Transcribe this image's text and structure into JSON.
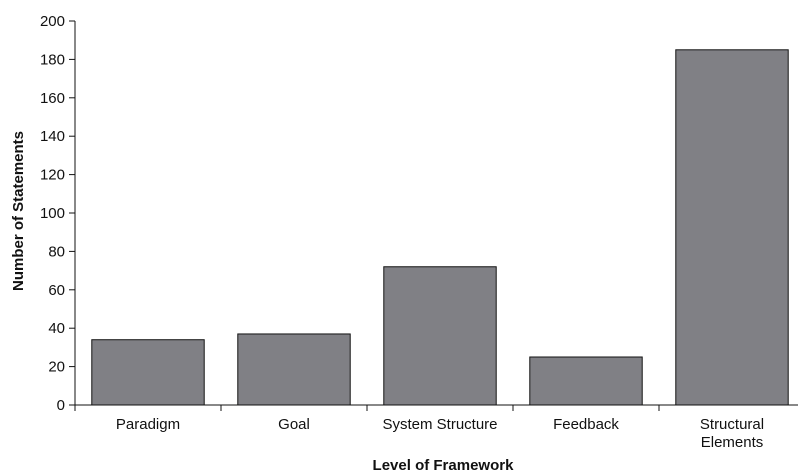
{
  "chart_data": {
    "type": "bar",
    "title": "",
    "xlabel": "Level of Framework",
    "ylabel": "Number of Statements",
    "categories": [
      [
        "Paradigm"
      ],
      [
        "Goal"
      ],
      [
        "System Structure"
      ],
      [
        "Feedback"
      ],
      [
        "Structural",
        "Elements"
      ]
    ],
    "values": [
      34,
      37,
      72,
      25,
      185
    ],
    "ylim": [
      0,
      200
    ],
    "yticks": [
      0,
      20,
      40,
      60,
      80,
      100,
      120,
      140,
      160,
      180,
      200
    ],
    "grid": false,
    "bar_color": "#808085",
    "bar_edge_color": "#111111"
  }
}
